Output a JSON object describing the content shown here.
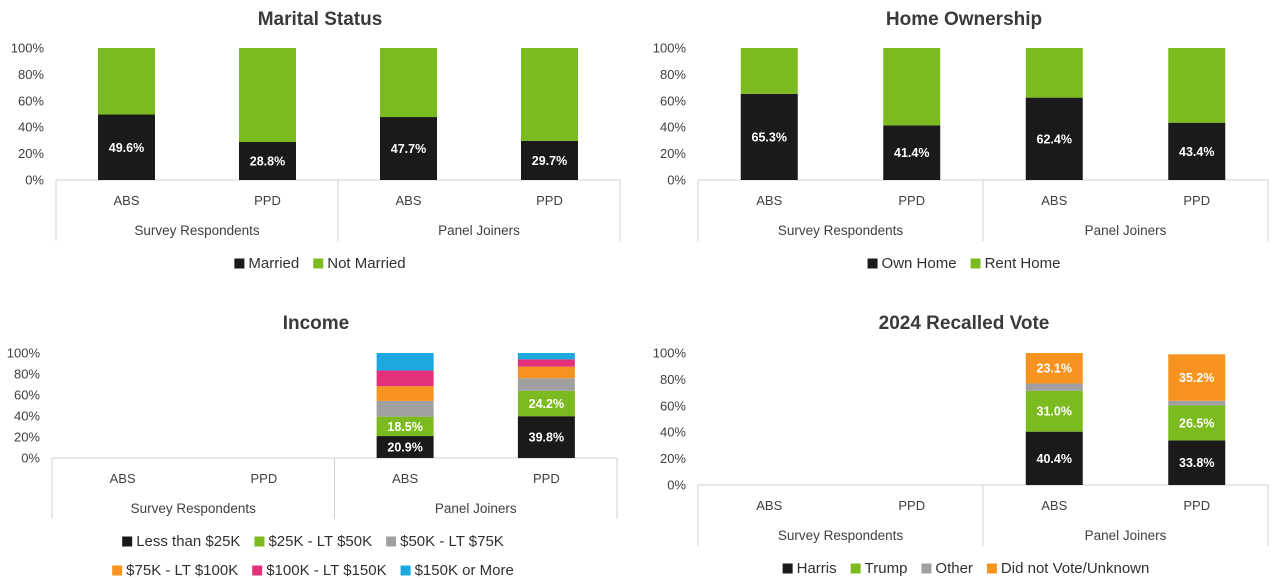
{
  "chart_data": [
    {
      "type": "bar",
      "stacked": true,
      "title": "Marital Status",
      "yticks": [
        "0%",
        "20%",
        "40%",
        "60%",
        "80%",
        "100%"
      ],
      "groups": [
        {
          "label": "Survey Respondents",
          "categories": [
            "ABS",
            "PPD"
          ]
        },
        {
          "label": "Panel Joiners",
          "categories": [
            "ABS",
            "PPD"
          ]
        }
      ],
      "categories": [
        "ABS",
        "PPD",
        "ABS",
        "PPD"
      ],
      "series": [
        {
          "name": "Married",
          "color": "#1a1a1a",
          "values": [
            49.6,
            28.8,
            47.7,
            29.7
          ],
          "labels": [
            "49.6%",
            "28.8%",
            "47.7%",
            "29.7%"
          ]
        },
        {
          "name": "Not Married",
          "color": "#7cbb1f",
          "values": [
            50.4,
            71.2,
            52.3,
            70.3
          ],
          "labels": []
        }
      ],
      "legend": [
        "Married",
        "Not Married"
      ],
      "ylim": [
        0,
        100
      ]
    },
    {
      "type": "bar",
      "stacked": true,
      "title": "Home Ownership",
      "yticks": [
        "0%",
        "20%",
        "40%",
        "60%",
        "80%",
        "100%"
      ],
      "groups": [
        {
          "label": "Survey Respondents",
          "categories": [
            "ABS",
            "PPD"
          ]
        },
        {
          "label": "Panel Joiners",
          "categories": [
            "ABS",
            "PPD"
          ]
        }
      ],
      "categories": [
        "ABS",
        "PPD",
        "ABS",
        "PPD"
      ],
      "series": [
        {
          "name": "Own Home",
          "color": "#1a1a1a",
          "values": [
            65.3,
            41.4,
            62.4,
            43.4
          ],
          "labels": [
            "65.3%",
            "41.4%",
            "62.4%",
            "43.4%"
          ]
        },
        {
          "name": "Rent Home",
          "color": "#7cbb1f",
          "values": [
            34.7,
            58.6,
            37.6,
            56.6
          ],
          "labels": []
        }
      ],
      "legend": [
        "Own Home",
        "Rent Home"
      ],
      "ylim": [
        0,
        100
      ]
    },
    {
      "type": "bar",
      "stacked": true,
      "title": "Income",
      "yticks": [
        "0%",
        "20%",
        "40%",
        "60%",
        "80%",
        "100%"
      ],
      "groups": [
        {
          "label": "Survey Respondents",
          "categories": [
            "ABS",
            "PPD"
          ]
        },
        {
          "label": "Panel Joiners",
          "categories": [
            "ABS",
            "PPD"
          ]
        }
      ],
      "categories": [
        "ABS",
        "PPD",
        "ABS",
        "PPD"
      ],
      "series": [
        {
          "name": "Less than $25K",
          "color": "#1a1a1a",
          "values": [
            0,
            0,
            20.9,
            39.8
          ],
          "labels": [
            "",
            "",
            "20.9%",
            "39.8%"
          ]
        },
        {
          "name": "$25K - LT $50K",
          "color": "#7cbb1f",
          "values": [
            0,
            0,
            18.5,
            24.2
          ],
          "labels": [
            "",
            "",
            "18.5%",
            "24.2%"
          ]
        },
        {
          "name": "$50K - LT $75K",
          "color": "#a0a0a0",
          "values": [
            0,
            0,
            15,
            12
          ],
          "labels": []
        },
        {
          "name": "$75K - LT $100K",
          "color": "#f7931e",
          "values": [
            0,
            0,
            14,
            11
          ],
          "labels": []
        },
        {
          "name": "$100K - LT $150K",
          "color": "#e2307a",
          "values": [
            0,
            0,
            15,
            7
          ],
          "labels": []
        },
        {
          "name": "$150K or More",
          "color": "#1ea8e0",
          "values": [
            0,
            0,
            16.6,
            6
          ],
          "labels": []
        }
      ],
      "legend": [
        "Less than $25K",
        "$25K - LT $50K",
        "$50K - LT $75K",
        "$75K - LT $100K",
        "$100K - LT $150K",
        "$150K or More"
      ],
      "ylim": [
        0,
        100
      ]
    },
    {
      "type": "bar",
      "stacked": true,
      "title": "2024 Recalled Vote",
      "yticks": [
        "0%",
        "20%",
        "40%",
        "60%",
        "80%",
        "100%"
      ],
      "groups": [
        {
          "label": "Survey Respondents",
          "categories": [
            "ABS",
            "PPD"
          ]
        },
        {
          "label": "Panel Joiners",
          "categories": [
            "ABS",
            "PPD"
          ]
        }
      ],
      "categories": [
        "ABS",
        "PPD",
        "ABS",
        "PPD"
      ],
      "series": [
        {
          "name": "Harris",
          "color": "#1a1a1a",
          "values": [
            0,
            0,
            40.4,
            33.8
          ],
          "labels": [
            "",
            "",
            "40.4%",
            "33.8%"
          ]
        },
        {
          "name": "Trump",
          "color": "#7cbb1f",
          "values": [
            0,
            0,
            31.0,
            26.5
          ],
          "labels": [
            "",
            "",
            "31.0%",
            "26.5%"
          ]
        },
        {
          "name": "Other",
          "color": "#a0a0a0",
          "values": [
            0,
            0,
            5.5,
            3.5
          ],
          "labels": []
        },
        {
          "name": "Did not Vote/Unknown",
          "color": "#f7931e",
          "values": [
            0,
            0,
            23.1,
            35.2
          ],
          "labels": [
            "",
            "",
            "23.1%",
            "35.2%"
          ]
        }
      ],
      "legend": [
        "Harris",
        "Trump",
        "Other",
        "Did not Vote/Unknown"
      ],
      "ylim": [
        0,
        100
      ]
    }
  ]
}
